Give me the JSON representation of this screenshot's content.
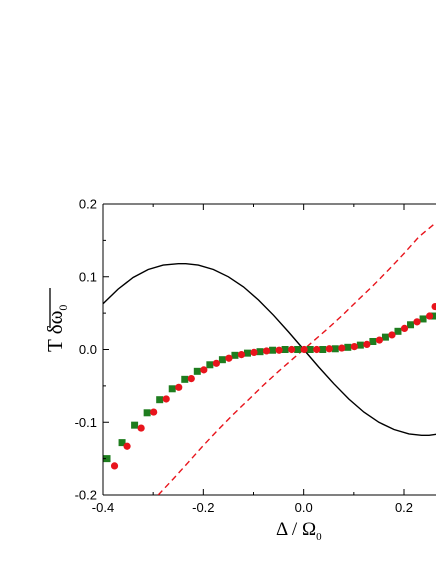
{
  "chart_data": {
    "type": "scatter",
    "xlabel": "Δ / Ω",
    "xlabel_sub": "0",
    "ylabel": "T δω",
    "ylabel_sub": "0",
    "xlim": [
      -0.4,
      0.27
    ],
    "ylim": [
      -0.2,
      0.2
    ],
    "x_ticks": [
      -0.4,
      -0.2,
      0.0,
      0.2
    ],
    "x_tick_labels": [
      "-0.4",
      "-0.2",
      "0.0",
      "0.2"
    ],
    "y_ticks": [
      -0.2,
      -0.1,
      0.0,
      0.1,
      0.2
    ],
    "y_tick_labels": [
      "-0.2",
      "-0.1",
      "0.0",
      "0.1",
      "0.2"
    ],
    "grid": false,
    "legend": "none",
    "series": [
      {
        "kind": "line",
        "style": "solid",
        "color": "#000000",
        "x": [
          -0.4,
          -0.37,
          -0.34,
          -0.31,
          -0.28,
          -0.25,
          -0.235,
          -0.21,
          -0.18,
          -0.15,
          -0.12,
          -0.09,
          -0.06,
          -0.03,
          0.0,
          0.03,
          0.06,
          0.09,
          0.12,
          0.15,
          0.18,
          0.21,
          0.235,
          0.25,
          0.27
        ],
        "y": [
          0.063,
          0.083,
          0.099,
          0.11,
          0.116,
          0.118,
          0.118,
          0.116,
          0.11,
          0.1,
          0.086,
          0.068,
          0.047,
          0.024,
          0.0,
          -0.024,
          -0.047,
          -0.068,
          -0.086,
          -0.1,
          -0.11,
          -0.116,
          -0.118,
          -0.118,
          -0.116
        ]
      },
      {
        "kind": "line",
        "style": "dashed",
        "color": "#e8141c",
        "x": [
          -0.29,
          -0.26,
          -0.23,
          -0.2,
          -0.17,
          -0.14,
          -0.11,
          -0.08,
          -0.05,
          -0.02,
          0.0,
          0.02,
          0.05,
          0.08,
          0.11,
          0.14,
          0.17,
          0.2,
          0.23,
          0.27
        ],
        "y": [
          -0.2,
          -0.178,
          -0.155,
          -0.132,
          -0.11,
          -0.089,
          -0.069,
          -0.049,
          -0.03,
          -0.012,
          0.0,
          0.012,
          0.03,
          0.049,
          0.069,
          0.089,
          0.11,
          0.132,
          0.155,
          0.178
        ]
      },
      {
        "kind": "scatter",
        "marker": "square",
        "color": "#1e7d1e",
        "x": [
          -0.392,
          -0.362,
          -0.337,
          -0.312,
          -0.287,
          -0.262,
          -0.237,
          -0.212,
          -0.187,
          -0.162,
          -0.137,
          -0.112,
          -0.087,
          -0.062,
          -0.037,
          -0.012,
          0.013,
          0.038,
          0.063,
          0.088,
          0.113,
          0.138,
          0.163,
          0.188,
          0.213,
          0.238,
          0.258
        ],
        "y": [
          -0.15,
          -0.128,
          -0.104,
          -0.087,
          -0.069,
          -0.054,
          -0.041,
          -0.03,
          -0.021,
          -0.014,
          -0.008,
          -0.005,
          -0.003,
          -0.001,
          0.0,
          0.0,
          0.0,
          0.0,
          0.001,
          0.003,
          0.006,
          0.011,
          0.017,
          0.025,
          0.034,
          0.042,
          0.046
        ]
      },
      {
        "kind": "scatter",
        "marker": "circle",
        "color": "#e8141c",
        "x": [
          -0.377,
          -0.352,
          -0.324,
          -0.299,
          -0.274,
          -0.249,
          -0.224,
          -0.199,
          -0.174,
          -0.149,
          -0.124,
          -0.099,
          -0.074,
          -0.049,
          -0.024,
          0.001,
          0.026,
          0.051,
          0.076,
          0.101,
          0.126,
          0.151,
          0.176,
          0.201,
          0.226,
          0.251,
          0.262
        ],
        "y": [
          -0.16,
          -0.133,
          -0.108,
          -0.086,
          -0.068,
          -0.052,
          -0.04,
          -0.028,
          -0.019,
          -0.012,
          -0.007,
          -0.004,
          -0.002,
          -0.001,
          0.0,
          0.0,
          0.0,
          0.001,
          0.002,
          0.004,
          0.007,
          0.013,
          0.02,
          0.029,
          0.038,
          0.046,
          0.059
        ]
      }
    ]
  }
}
